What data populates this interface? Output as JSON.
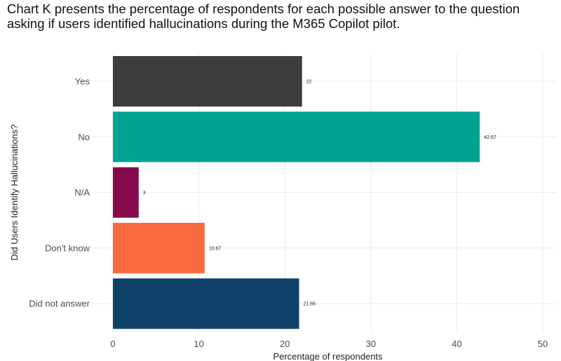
{
  "caption": {
    "line1": "Chart K presents the percentage of respondents for each possible answer to the question",
    "line2": "asking if users identified hallucinations during the M365 Copilot pilot."
  },
  "chart_data": {
    "type": "bar",
    "orientation": "horizontal",
    "categories": [
      "Yes",
      "No",
      "N/A",
      "Don't know",
      "Did not answer"
    ],
    "values": [
      22,
      42.67,
      3,
      10.67,
      21.66
    ],
    "value_labels": [
      "22",
      "42.67",
      "3",
      "10.67",
      "21.66"
    ],
    "colors": [
      "#3d3d3d",
      "#00a495",
      "#850a4b",
      "#f9693e",
      "#0f4268"
    ],
    "xlabel": "Percentage of respondents",
    "ylabel": "Did Users Identify Hallucinations?",
    "xlim": [
      0,
      50
    ],
    "xticks": [
      0,
      10,
      20,
      30,
      40,
      50
    ],
    "grid": true,
    "legend": "none"
  }
}
